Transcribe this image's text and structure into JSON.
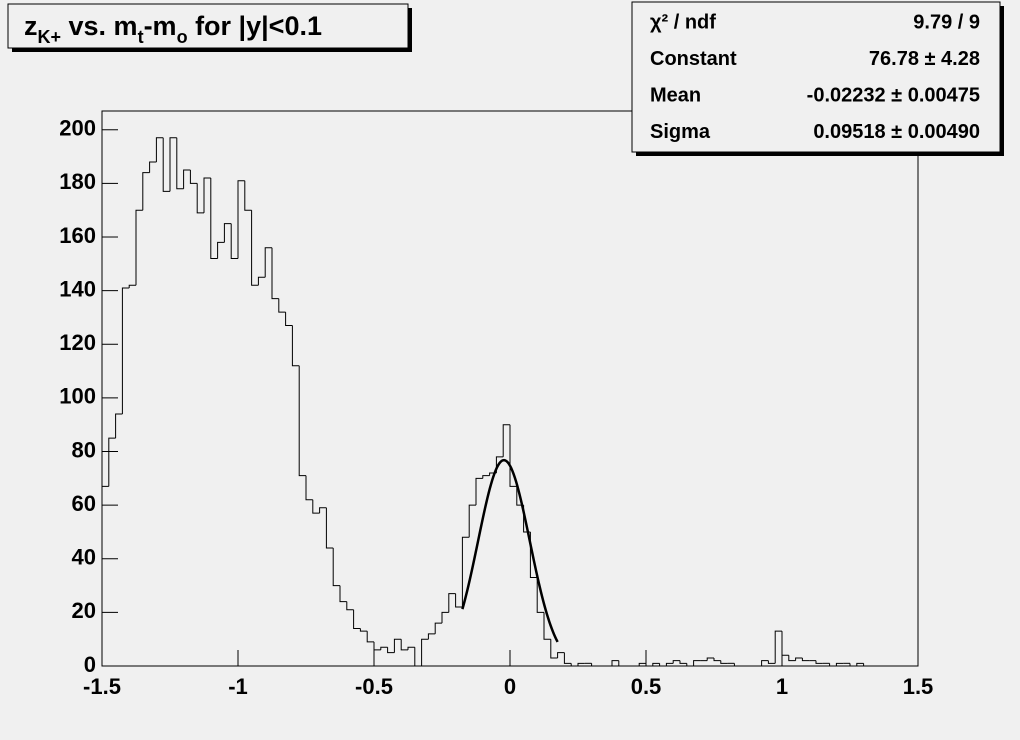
{
  "chart_data": {
    "type": "histogram",
    "title": [
      {
        "text": "z"
      },
      {
        "text": "K+",
        "sub": true
      },
      {
        "text": " vs. m"
      },
      {
        "text": "t",
        "sub": true
      },
      {
        "text": "-m"
      },
      {
        "text": "o",
        "sub": true
      },
      {
        "text": " for |y|<0.1"
      }
    ],
    "stats": [
      [
        "χ² / ndf",
        "9.79 / 9"
      ],
      [
        "Constant",
        "76.78 ± 4.28"
      ],
      [
        "Mean",
        "-0.02232 ± 0.00475"
      ],
      [
        "Sigma",
        "0.09518 ± 0.00490"
      ]
    ],
    "bins": [
      -1.5,
      -1.475,
      -1.45,
      -1.425,
      -1.4,
      -1.375,
      -1.35,
      -1.325,
      -1.3,
      -1.275,
      -1.25,
      -1.225,
      -1.2,
      -1.175,
      -1.15,
      -1.125,
      -1.1,
      -1.075,
      -1.05,
      -1.025,
      -1,
      -0.975,
      -0.95,
      -0.925,
      -0.9,
      -0.875,
      -0.85,
      -0.825,
      -0.8,
      -0.775,
      -0.75,
      -0.725,
      -0.7,
      -0.675,
      -0.65,
      -0.625,
      -0.6,
      -0.575,
      -0.55,
      -0.525,
      -0.5,
      -0.475,
      -0.45,
      -0.425,
      -0.4,
      -0.375,
      -0.35,
      -0.325,
      -0.3,
      -0.275,
      -0.25,
      -0.225,
      -0.2,
      -0.175,
      -0.15,
      -0.125,
      -0.1,
      -0.075,
      -0.05,
      -0.025,
      0,
      0.025,
      0.05,
      0.075,
      0.1,
      0.125,
      0.15,
      0.175,
      0.2,
      0.225,
      0.25,
      0.275,
      0.3,
      0.325,
      0.35,
      0.375,
      0.4,
      0.425,
      0.45,
      0.475,
      0.5,
      0.525,
      0.55,
      0.575,
      0.6,
      0.625,
      0.65,
      0.675,
      0.7,
      0.725,
      0.75,
      0.775,
      0.8,
      0.825,
      0.85,
      0.875,
      0.9,
      0.925,
      0.95,
      0.975,
      1,
      1.025,
      1.05,
      1.075,
      1.1,
      1.125,
      1.15,
      1.175,
      1.2,
      1.225,
      1.25,
      1.275,
      1.3,
      1.325,
      1.35,
      1.375,
      1.4,
      1.425,
      1.45,
      1.475,
      1.5
    ],
    "values": [
      67,
      85,
      94,
      141,
      142,
      170,
      184,
      188,
      197,
      177,
      197,
      178,
      185,
      180,
      169,
      182,
      152,
      158,
      165,
      152,
      181,
      170,
      142,
      145,
      156,
      137,
      132,
      127,
      112,
      71,
      62,
      57,
      59,
      44,
      30,
      24,
      21,
      14,
      13,
      9,
      6,
      7,
      5,
      10,
      6,
      7,
      0,
      10,
      12,
      16,
      20,
      27,
      22,
      48,
      60,
      70,
      71,
      72,
      78,
      90,
      67,
      60,
      50,
      33,
      20,
      10,
      3,
      5,
      1,
      0,
      1,
      1,
      0,
      0,
      0,
      2,
      0,
      0,
      0,
      1,
      0,
      1,
      0,
      1,
      2,
      1,
      0,
      2,
      2,
      3,
      2,
      1,
      1,
      0,
      0,
      0,
      0,
      2,
      1,
      13,
      4,
      2,
      3,
      2,
      2,
      1,
      1,
      0,
      1,
      1,
      0,
      1,
      0,
      0,
      0,
      0,
      0,
      0,
      0,
      0
    ],
    "color": "#000000",
    "fit": {
      "constant": 76.78,
      "mean": -0.02232,
      "sigma": 0.09518,
      "range": [
        -0.175,
        0.175
      ],
      "color": "#000000"
    },
    "xlim": [
      -1.5,
      1.5
    ],
    "xticks": [
      -1.5,
      -1,
      -0.5,
      0,
      0.5,
      1,
      1.5
    ],
    "ylim": [
      0,
      207
    ],
    "yticks": [
      0,
      20,
      40,
      60,
      80,
      100,
      120,
      140,
      160,
      180,
      200
    ]
  }
}
